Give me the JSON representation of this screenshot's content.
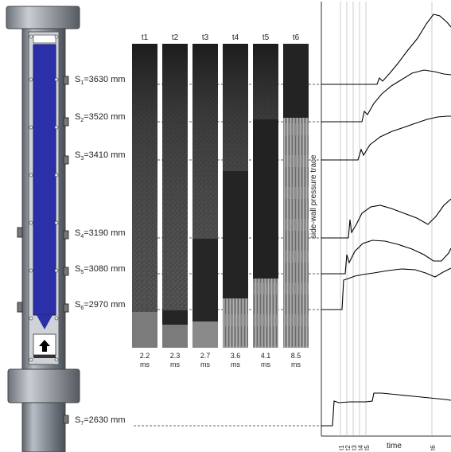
{
  "sensors": [
    {
      "id": "S1",
      "prefix": "S",
      "sub": "1",
      "value": "=3630 mm"
    },
    {
      "id": "S2",
      "prefix": "S",
      "sub": "2",
      "value": "=3520 mm"
    },
    {
      "id": "S3",
      "prefix": "S",
      "sub": "3",
      "value": "=3410 mm"
    },
    {
      "id": "S4",
      "prefix": "S",
      "sub": "4",
      "value": "=3190 mm"
    },
    {
      "id": "S5",
      "prefix": "S",
      "sub": "5",
      "value": "=3080 mm"
    },
    {
      "id": "S6",
      "prefix": "S",
      "sub": "6",
      "value": "=2970 mm"
    },
    {
      "id": "S7",
      "prefix": "S",
      "sub": "7",
      "value": "=2630 mm"
    }
  ],
  "frames": [
    {
      "label": "t1",
      "time": "2.2",
      "unit": "ms"
    },
    {
      "label": "t2",
      "time": "2.3",
      "unit": "ms"
    },
    {
      "label": "t3",
      "time": "2.7",
      "unit": "ms"
    },
    {
      "label": "t4",
      "time": "3.6",
      "unit": "ms"
    },
    {
      "label": "t5",
      "time": "4.1",
      "unit": "ms"
    },
    {
      "label": "t6",
      "time": "8.5",
      "unit": "ms"
    }
  ],
  "plot": {
    "ylabel": "side-wall pressure trace",
    "xlabel": "time",
    "ticks": [
      "t1",
      "t2",
      "t3",
      "t4",
      "t5",
      "t6"
    ]
  },
  "colors": {
    "fluid": "#2b2fa8",
    "frame_dark": "#2a2a2a",
    "tube": "#9aa0a8"
  }
}
